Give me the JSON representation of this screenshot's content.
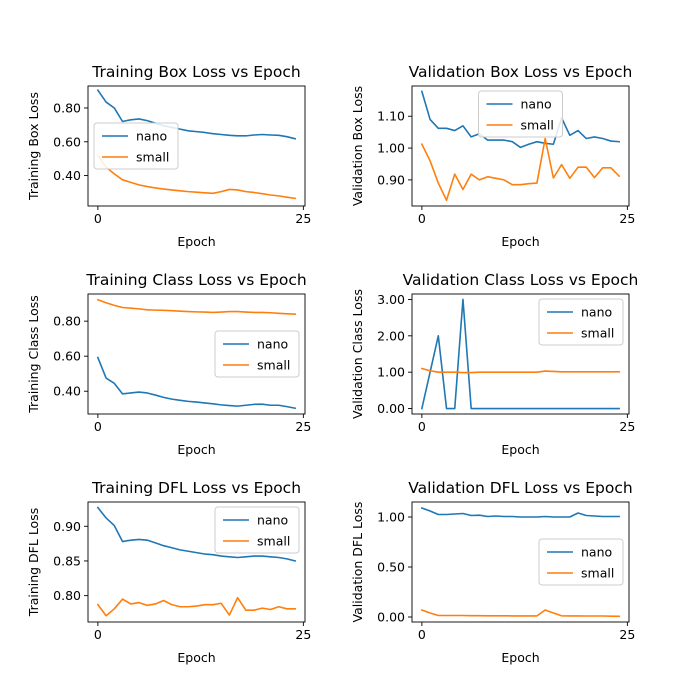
{
  "chart_data": [
    {
      "type": "line",
      "title": "Training Box Loss vs Epoch",
      "xlabel": "Epoch",
      "ylabel": "Training Box Loss",
      "xlim": [
        -1.2,
        25.2
      ],
      "ylim": [
        0.22,
        0.93
      ],
      "xticks": [
        0,
        25
      ],
      "yticks": [
        0.4,
        0.6,
        0.8
      ],
      "ytick_labels": [
        "0.40",
        "0.60",
        "0.80"
      ],
      "legend_loc": "center-left",
      "x": [
        0,
        1,
        2,
        3,
        4,
        5,
        6,
        7,
        8,
        9,
        10,
        11,
        12,
        13,
        14,
        15,
        16,
        17,
        18,
        19,
        20,
        21,
        22,
        23,
        24
      ],
      "series": [
        {
          "name": "nano",
          "color": "#1f77b4",
          "values": [
            0.905,
            0.835,
            0.8,
            0.72,
            0.73,
            0.735,
            0.725,
            0.71,
            0.695,
            0.685,
            0.675,
            0.665,
            0.66,
            0.655,
            0.648,
            0.643,
            0.638,
            0.635,
            0.635,
            0.64,
            0.643,
            0.64,
            0.638,
            0.63,
            0.618
          ]
        },
        {
          "name": "small",
          "color": "#ff7f0e",
          "values": [
            0.52,
            0.45,
            0.41,
            0.375,
            0.36,
            0.345,
            0.335,
            0.327,
            0.32,
            0.315,
            0.31,
            0.305,
            0.302,
            0.298,
            0.295,
            0.305,
            0.318,
            0.315,
            0.305,
            0.3,
            0.293,
            0.285,
            0.28,
            0.272,
            0.265
          ]
        }
      ]
    },
    {
      "type": "line",
      "title": "Validation Box Loss vs Epoch",
      "xlabel": "Epoch",
      "ylabel": "Validation Box Loss",
      "xlim": [
        -1.2,
        25.2
      ],
      "ylim": [
        0.818,
        1.195
      ],
      "xticks": [
        0,
        25
      ],
      "yticks": [
        0.9,
        1.0,
        1.1
      ],
      "ytick_labels": [
        "0.90",
        "1.00",
        "1.10"
      ],
      "legend_loc": "upper-center",
      "x": [
        0,
        1,
        2,
        3,
        4,
        5,
        6,
        7,
        8,
        9,
        10,
        11,
        12,
        13,
        14,
        15,
        16,
        17,
        18,
        19,
        20,
        21,
        22,
        23,
        24
      ],
      "series": [
        {
          "name": "nano",
          "color": "#1f77b4",
          "values": [
            1.178,
            1.09,
            1.062,
            1.062,
            1.055,
            1.07,
            1.035,
            1.045,
            1.025,
            1.025,
            1.025,
            1.02,
            1.002,
            1.012,
            1.02,
            1.015,
            1.012,
            1.095,
            1.04,
            1.055,
            1.03,
            1.035,
            1.03,
            1.022,
            1.02
          ]
        },
        {
          "name": "small",
          "color": "#ff7f0e",
          "values": [
            1.012,
            0.96,
            0.89,
            0.836,
            0.918,
            0.87,
            0.918,
            0.9,
            0.91,
            0.905,
            0.9,
            0.885,
            0.885,
            0.888,
            0.89,
            1.03,
            0.906,
            0.948,
            0.905,
            0.94,
            0.94,
            0.907,
            0.938,
            0.938,
            0.912
          ]
        }
      ]
    },
    {
      "type": "line",
      "title": "Training Class Loss vs Epoch",
      "xlabel": "Epoch",
      "ylabel": "Training Class Loss",
      "xlim": [
        -1.2,
        25.2
      ],
      "ylim": [
        0.27,
        0.955
      ],
      "xticks": [
        0,
        25
      ],
      "yticks": [
        0.4,
        0.6,
        0.8
      ],
      "ytick_labels": [
        "0.40",
        "0.60",
        "0.80"
      ],
      "legend_loc": "center-right",
      "x": [
        0,
        1,
        2,
        3,
        4,
        5,
        6,
        7,
        8,
        9,
        10,
        11,
        12,
        13,
        14,
        15,
        16,
        17,
        18,
        19,
        20,
        21,
        22,
        23,
        24
      ],
      "series": [
        {
          "name": "nano",
          "color": "#1f77b4",
          "values": [
            0.592,
            0.475,
            0.445,
            0.385,
            0.39,
            0.395,
            0.39,
            0.378,
            0.365,
            0.355,
            0.348,
            0.342,
            0.338,
            0.333,
            0.328,
            0.322,
            0.318,
            0.315,
            0.32,
            0.325,
            0.326,
            0.32,
            0.32,
            0.312,
            0.303
          ]
        },
        {
          "name": "small",
          "color": "#ff7f0e",
          "values": [
            0.922,
            0.905,
            0.89,
            0.878,
            0.874,
            0.87,
            0.865,
            0.863,
            0.862,
            0.86,
            0.857,
            0.855,
            0.853,
            0.852,
            0.85,
            0.852,
            0.855,
            0.855,
            0.852,
            0.85,
            0.85,
            0.848,
            0.845,
            0.842,
            0.84
          ]
        }
      ]
    },
    {
      "type": "line",
      "title": "Validation Class Loss vs Epoch",
      "xlabel": "Epoch",
      "ylabel": "Validation Class Loss",
      "xlim": [
        -1.2,
        25.2
      ],
      "ylim": [
        -0.15,
        3.15
      ],
      "xticks": [
        0,
        25
      ],
      "yticks": [
        0.0,
        1.0,
        2.0,
        3.0
      ],
      "ytick_labels": [
        "0.00",
        "1.00",
        "2.00",
        "3.00"
      ],
      "legend_loc": "upper-right",
      "x": [
        0,
        1,
        2,
        3,
        4,
        5,
        6,
        7,
        8,
        9,
        10,
        11,
        12,
        13,
        14,
        15,
        16,
        17,
        18,
        19,
        20,
        21,
        22,
        23,
        24
      ],
      "series": [
        {
          "name": "nano",
          "color": "#1f77b4",
          "values": [
            0.0,
            1.0,
            2.0,
            0.0,
            0.0,
            3.0,
            0.0,
            0.0,
            0.0,
            0.0,
            0.0,
            0.0,
            0.0,
            0.0,
            0.0,
            0.0,
            0.0,
            0.0,
            0.0,
            0.0,
            0.0,
            0.0,
            0.0,
            0.0,
            0.0
          ]
        },
        {
          "name": "small",
          "color": "#ff7f0e",
          "values": [
            1.1,
            1.04,
            1.0,
            1.0,
            1.0,
            0.99,
            0.99,
            1.0,
            1.0,
            1.0,
            1.0,
            1.0,
            1.0,
            1.0,
            1.0,
            1.03,
            1.02,
            1.01,
            1.01,
            1.01,
            1.01,
            1.01,
            1.01,
            1.01,
            1.01
          ]
        }
      ]
    },
    {
      "type": "line",
      "title": "Training DFL Loss vs Epoch",
      "xlabel": "Epoch",
      "ylabel": "Training DFL Loss",
      "xlim": [
        -1.2,
        25.2
      ],
      "ylim": [
        0.762,
        0.935
      ],
      "xticks": [
        0,
        25
      ],
      "yticks": [
        0.8,
        0.85,
        0.9
      ],
      "ytick_labels": [
        "0.80",
        "0.85",
        "0.90"
      ],
      "legend_loc": "upper-right",
      "x": [
        0,
        1,
        2,
        3,
        4,
        5,
        6,
        7,
        8,
        9,
        10,
        11,
        12,
        13,
        14,
        15,
        16,
        17,
        18,
        19,
        20,
        21,
        22,
        23,
        24
      ],
      "series": [
        {
          "name": "nano",
          "color": "#1f77b4",
          "values": [
            0.927,
            0.912,
            0.901,
            0.878,
            0.88,
            0.881,
            0.88,
            0.876,
            0.872,
            0.869,
            0.866,
            0.864,
            0.862,
            0.86,
            0.859,
            0.857,
            0.856,
            0.855,
            0.856,
            0.857,
            0.857,
            0.856,
            0.855,
            0.853,
            0.85
          ]
        },
        {
          "name": "small",
          "color": "#ff7f0e",
          "values": [
            0.787,
            0.771,
            0.781,
            0.795,
            0.788,
            0.79,
            0.786,
            0.788,
            0.793,
            0.787,
            0.784,
            0.784,
            0.785,
            0.787,
            0.787,
            0.789,
            0.772,
            0.797,
            0.779,
            0.779,
            0.782,
            0.78,
            0.784,
            0.781,
            0.781
          ]
        }
      ]
    },
    {
      "type": "line",
      "title": "Validation DFL Loss vs Epoch",
      "xlabel": "Epoch",
      "ylabel": "Validation DFL Loss",
      "xlim": [
        -1.2,
        25.2
      ],
      "ylim": [
        -0.05,
        1.15
      ],
      "xticks": [
        0,
        25
      ],
      "yticks": [
        0.0,
        0.5,
        1.0
      ],
      "ytick_labels": [
        "0.00",
        "0.50",
        "1.00"
      ],
      "legend_loc": "center-right",
      "x": [
        0,
        1,
        2,
        3,
        4,
        5,
        6,
        7,
        8,
        9,
        10,
        11,
        12,
        13,
        14,
        15,
        16,
        17,
        18,
        19,
        20,
        21,
        22,
        23,
        24
      ],
      "series": [
        {
          "name": "nano",
          "color": "#1f77b4",
          "values": [
            1.09,
            1.06,
            1.025,
            1.025,
            1.03,
            1.035,
            1.015,
            1.018,
            1.005,
            1.01,
            1.005,
            1.005,
            1.0,
            1.0,
            1.0,
            1.005,
            1.0,
            1.0,
            1.0,
            1.04,
            1.015,
            1.01,
            1.005,
            1.005,
            1.005
          ]
        },
        {
          "name": "small",
          "color": "#ff7f0e",
          "values": [
            0.07,
            0.04,
            0.015,
            0.015,
            0.015,
            0.015,
            0.013,
            0.013,
            0.012,
            0.012,
            0.012,
            0.011,
            0.011,
            0.011,
            0.011,
            0.07,
            0.04,
            0.012,
            0.011,
            0.011,
            0.01,
            0.01,
            0.01,
            0.008,
            0.007
          ]
        }
      ]
    }
  ]
}
